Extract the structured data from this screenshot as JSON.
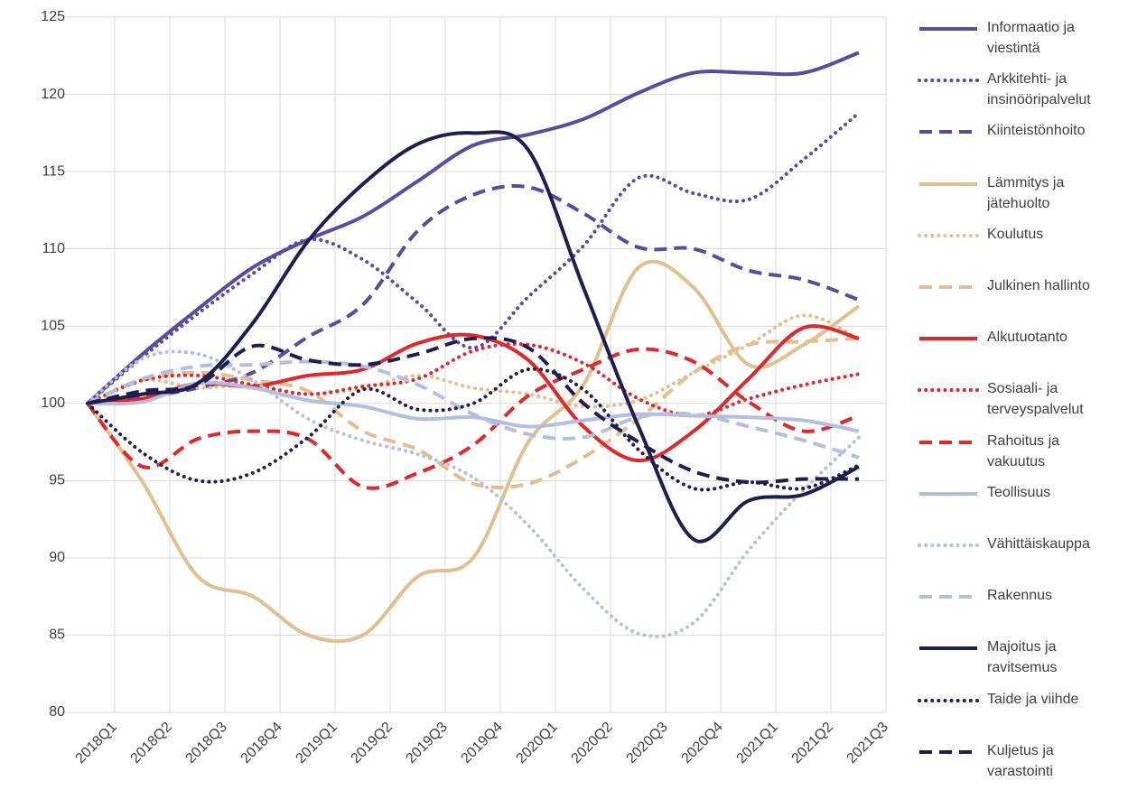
{
  "chart_data": {
    "type": "line",
    "categories": [
      "2018Q1",
      "2018Q2",
      "2018Q3",
      "2018Q4",
      "2019Q1",
      "2019Q2",
      "2019Q3",
      "2019Q4",
      "2020Q1",
      "2020Q2",
      "2020Q3",
      "2020Q4",
      "2021Q1",
      "2021Q2",
      "2021Q3"
    ],
    "ylim": [
      80,
      125
    ],
    "yticks": [
      80,
      85,
      90,
      95,
      100,
      105,
      110,
      115,
      120,
      125
    ],
    "grid": true,
    "legend": "right",
    "series": [
      {
        "name": "Informaatio ja viestintä",
        "color": "#5b4a9e",
        "style": "solid",
        "values": [
          100,
          103.2,
          106.1,
          108.8,
          110.6,
          112.1,
          114.4,
          116.7,
          117.4,
          118.4,
          120.1,
          121.4,
          121.4,
          121.4,
          122.7
        ]
      },
      {
        "name": "Arkkitehti- ja insinööripalvelut",
        "color": "#5b4a9e",
        "style": "dotted",
        "values": [
          100,
          103,
          105.8,
          108.4,
          110.6,
          109.3,
          106.5,
          103.6,
          106.9,
          110.2,
          114.6,
          113.6,
          113.2,
          115.8,
          118.8
        ]
      },
      {
        "name": "Kiinteistönhoito",
        "color": "#5b4a9e",
        "style": "dashed",
        "values": [
          100,
          100.4,
          101,
          102,
          104.3,
          106.4,
          111.2,
          113.5,
          114,
          112.3,
          110.1,
          110,
          108.6,
          108,
          106.7
        ]
      },
      {
        "name": "Lämmitys ja jätehuolto",
        "color": "#e0c08e",
        "style": "solid",
        "values": [
          100,
          94.9,
          88.8,
          87.5,
          85,
          85,
          88.8,
          90,
          97.5,
          101.2,
          108.8,
          107.5,
          102.5,
          103.8,
          106.3
        ]
      },
      {
        "name": "Koulutus",
        "color": "#e0c08e",
        "style": "dotted",
        "values": [
          100,
          101.5,
          101,
          101.2,
          100.6,
          101,
          101.8,
          101,
          100.6,
          99.8,
          100.2,
          102,
          103.8,
          105.7,
          104.2
        ]
      },
      {
        "name": "Julkinen hallinto",
        "color": "#e0c08e",
        "style": "dashed",
        "values": [
          100,
          101.5,
          102,
          101.5,
          100.8,
          98.2,
          97,
          94.8,
          94.8,
          96.5,
          99,
          102,
          103.8,
          104,
          104.2
        ]
      },
      {
        "name": "Alkutuotanto",
        "color": "#e3262a",
        "style": "solid",
        "values": [
          100,
          100.3,
          101.3,
          101.1,
          101.8,
          102.2,
          103.9,
          104.4,
          102.8,
          98.5,
          96.3,
          98.2,
          101.6,
          104.9,
          104.2
        ]
      },
      {
        "name": "Sosiaali- ja terveyspalvelut",
        "color": "#e3262a",
        "style": "dotted",
        "values": [
          100,
          101.5,
          101.8,
          101.2,
          100.6,
          101.1,
          101.6,
          103.4,
          103.8,
          102.6,
          100.3,
          99.2,
          100.3,
          101.2,
          101.9
        ]
      },
      {
        "name": "Rahoitus ja vakuutus",
        "color": "#e3262a",
        "style": "dashed",
        "values": [
          100,
          95.9,
          97.7,
          98.2,
          97.7,
          94.6,
          95.5,
          97.3,
          100.5,
          102.2,
          103.5,
          102.7,
          100.1,
          98.2,
          99.2
        ]
      },
      {
        "name": "Teollisuus",
        "color": "#b4bedf",
        "style": "solid",
        "values": [
          100,
          100.1,
          101.3,
          101,
          100.2,
          99.8,
          99,
          99.1,
          98.5,
          98.9,
          99.3,
          99.2,
          99.1,
          98.9,
          98.2
        ]
      },
      {
        "name": "Vähittäiskauppa",
        "color": "#b4bedf",
        "style": "dotted",
        "values": [
          100,
          102.9,
          103.2,
          101.5,
          99,
          97.6,
          96.7,
          95.2,
          92.1,
          88,
          85.1,
          85.8,
          90.5,
          94.4,
          97.8
        ]
      },
      {
        "name": "Rakennus",
        "color": "#b4bedf",
        "style": "dashed",
        "values": [
          100,
          101.6,
          102.4,
          102.5,
          102.7,
          102.4,
          101.2,
          99.3,
          98,
          97.8,
          99.1,
          99.3,
          98.5,
          97.6,
          96.5
        ]
      },
      {
        "name": "Majoitus ja ravitsemus",
        "color": "#1f1f4f",
        "style": "solid",
        "values": [
          100,
          100.6,
          101.3,
          105.2,
          110.5,
          114.2,
          116.8,
          117.5,
          116.4,
          107.5,
          98.5,
          91.2,
          93.7,
          94.1,
          95.9
        ]
      },
      {
        "name": "Taide ja viihde",
        "color": "#1f1f4f",
        "style": "dotted",
        "values": [
          100,
          96.8,
          95,
          95.5,
          97.8,
          100.9,
          99.6,
          100,
          102.2,
          100.9,
          97,
          94.5,
          94.9,
          94.5,
          96
        ]
      },
      {
        "name": "Kuljetus ja varastointi",
        "color": "#1f1f4f",
        "style": "dashed",
        "values": [
          100,
          100.8,
          101.2,
          103.7,
          102.8,
          102.5,
          103.2,
          104.2,
          103.6,
          100,
          97.5,
          95.6,
          94.9,
          95.1,
          95.1
        ]
      }
    ]
  }
}
